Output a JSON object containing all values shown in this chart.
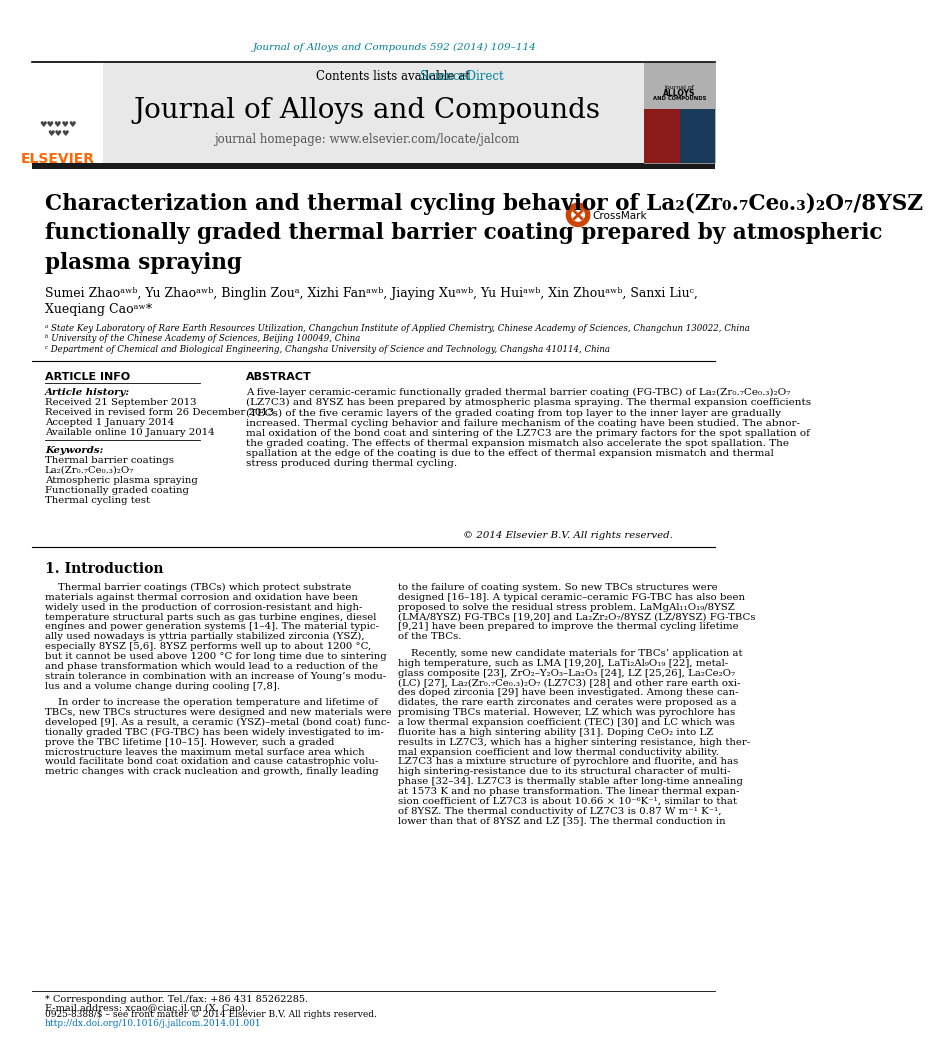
{
  "journal_ref": "Journal of Alloys and Compounds 592 (2014) 109–114",
  "journal_ref_color": "#00829B",
  "contents_text": "Contents lists available at ",
  "sciencedirect_text": "ScienceDirect",
  "sciencedirect_color": "#00829B",
  "journal_name": "Journal of Alloys and Compounds",
  "journal_homepage": "journal homepage: www.elsevier.com/locate/jalcom",
  "header_bg": "#e8e8e8",
  "dark_bar_color": "#1a1a1a",
  "title_line1": "Characterization and thermal cycling behavior of La₂(Zr₀.₇Ce₀.₃)₂O₇/8YSZ",
  "title_line2": "functionally graded thermal barrier coating prepared by atmospheric",
  "title_line3": "plasma spraying",
  "title_color": "#000000",
  "authors": "Sumei Zhaoᵃʷᵇ, Yu Zhaoᵃʷᵇ, Binglin Zouᵃ, Xizhi Fanᵃʷᵇ, Jiaying Xuᵃʷᵇ, Yu Huiᵃʷᵇ, Xin Zhouᵃʷᵇ, Sanxi Liuᶜ,",
  "authors2": "Xueqiang Caoᵃʷ*",
  "affil_a": "ᵃ State Key Laboratory of Rare Earth Resources Utilization, Changchun Institute of Applied Chemistry, Chinese Academy of Sciences, Changchun 130022, China",
  "affil_b": "ᵇ University of the Chinese Academy of Sciences, Beijing 100049, China",
  "affil_c": "ᶜ Department of Chemical and Biological Engineering, Changsha University of Science and Technology, Changsha 410114, China",
  "article_info_header": "ARTICLE INFO",
  "abstract_header": "ABSTRACT",
  "article_history_label": "Article history:",
  "received1": "Received 21 September 2013",
  "received2": "Received in revised form 26 December 2013",
  "accepted": "Accepted 1 January 2014",
  "available": "Available online 10 January 2014",
  "keywords_label": "Keywords:",
  "keyword1": "Thermal barrier coatings",
  "keyword2": "La₂(Zr₀.₇Ce₀.₃)₂O₇",
  "keyword3": "Atmospheric plasma spraying",
  "keyword4": "Functionally graded coating",
  "keyword5": "Thermal cycling test",
  "abstract_text": "A five-layer ceramic-ceramic functionally graded thermal barrier coating (FG-TBC) of La₂(Zr₀.₇Ce₀.₃)₂O₇\n(LZ7C3) and 8YSZ has been prepared by atmospheric plasma spraying. The thermal expansion coefficients\n(TECs) of the five ceramic layers of the graded coating from top layer to the inner layer are gradually\nincreased. Thermal cycling behavior and failure mechanism of the coating have been studied. The abnor-\nmal oxidation of the bond coat and sintering of the LZ7C3 are the primary factors for the spot spallation of\nthe graded coating. The effects of thermal expansion mismatch also accelerate the spot spallation. The\nspallation at the edge of the coating is due to the effect of thermal expansion mismatch and thermal\nstress produced during thermal cycling.",
  "copyright_text": "© 2014 Elsevier B.V. All rights reserved.",
  "intro_header": "1. Introduction",
  "intro_col1_p1": "    Thermal barrier coatings (TBCs) which protect substrate\nmaterials against thermal corrosion and oxidation have been\nwidely used in the production of corrosion-resistant and high-\ntemperature structural parts such as gas turbine engines, diesel\nengines and power generation systems [1–4]. The material typic-\nally used nowadays is yttria partially stabilized zirconia (YSZ),\nespecially 8YSZ [5,6]. 8YSZ performs well up to about 1200 °C,\nbut it cannot be used above 1200 °C for long time due to sintering\nand phase transformation which would lead to a reduction of the\nstrain tolerance in combination with an increase of Young’s modu-\nlus and a volume change during cooling [7,8].",
  "intro_col1_p2": "    In order to increase the operation temperature and lifetime of\nTBCs, new TBCs structures were designed and new materials were\ndeveloped [9]. As a result, a ceramic (YSZ)–metal (bond coat) func-\ntionally graded TBC (FG-TBC) has been widely investigated to im-\nprove the TBC lifetime [10–15]. However, such a graded\nmicrostructure leaves the maximum metal surface area which\nwould facilitate bond coat oxidation and cause catastrophic volu-\nmetric changes with crack nucleation and growth, finally leading",
  "intro_col2_p1": "to the failure of coating system. So new TBCs structures were\ndesigned [16–18]. A typical ceramic–ceramic FG-TBC has also been\nproposed to solve the residual stress problem. LaMgAl₁₁O₁₉/8YSZ\n(LMA/8YSZ) FG-TBCs [19,20] and La₂Zr₂O₇/8YSZ (LZ/8YSZ) FG-TBCs\n[9,21] have been prepared to improve the thermal cycling lifetime\nof the TBCs.",
  "intro_col2_p2": "    Recently, some new candidate materials for TBCs’ application at\nhigh temperature, such as LMA [19,20], LaTi₂Al₉O₁₉ [22], metal-\nglass composite [23], ZrO₂–Y₂O₃–La₂O₃ [24], LZ [25,26], La₂Ce₂O₇\n(LC) [27], La₂(Zr₀.₇Ce₀.₃)₂O₇ (LZ7C3) [28] and other rare earth oxi-\ndes doped zirconia [29] have been investigated. Among these can-\ndidates, the rare earth zirconates and cerates were proposed as a\npromising TBCs material. However, LZ which was pyrochlore has\na low thermal expansion coefficient (TEC) [30] and LC which was\nfluorite has a high sintering ability [31]. Doping CeO₂ into LZ\nresults in LZ7C3, which has a higher sintering resistance, high ther-\nmal expansion coefficient and low thermal conductivity ability.\nLZ7C3 has a mixture structure of pyrochlore and fluorite, and has\nhigh sintering-resistance due to its structural character of multi-\nphase [32–34]. LZ7C3 is thermally stable after long-time annealing\nat 1573 K and no phase transformation. The linear thermal expan-\nsion coefficient of LZ7C3 is about 10.66 × 10⁻⁶K⁻¹, similar to that\nof 8YSZ. The thermal conductivity of LZ7C3 is 0.87 W m⁻¹ K⁻¹,\nlower than that of 8YSZ and LZ [35]. The thermal conduction in",
  "footnote_star": "* Corresponding author. Tel./fax: +86 431 85262285.",
  "footnote_email": "E-mail address: xcao@ciac.jl.cn (X. Cao).",
  "issn": "0925-8388/$ – see front matter © 2014 Elsevier B.V. All rights reserved.",
  "doi": "http://dx.doi.org/10.1016/j.jallcom.2014.01.001",
  "doi_color": "#0070C0",
  "link_color": "#00829B",
  "bg_color": "#ffffff",
  "text_color": "#000000",
  "gray_text": "#555555"
}
